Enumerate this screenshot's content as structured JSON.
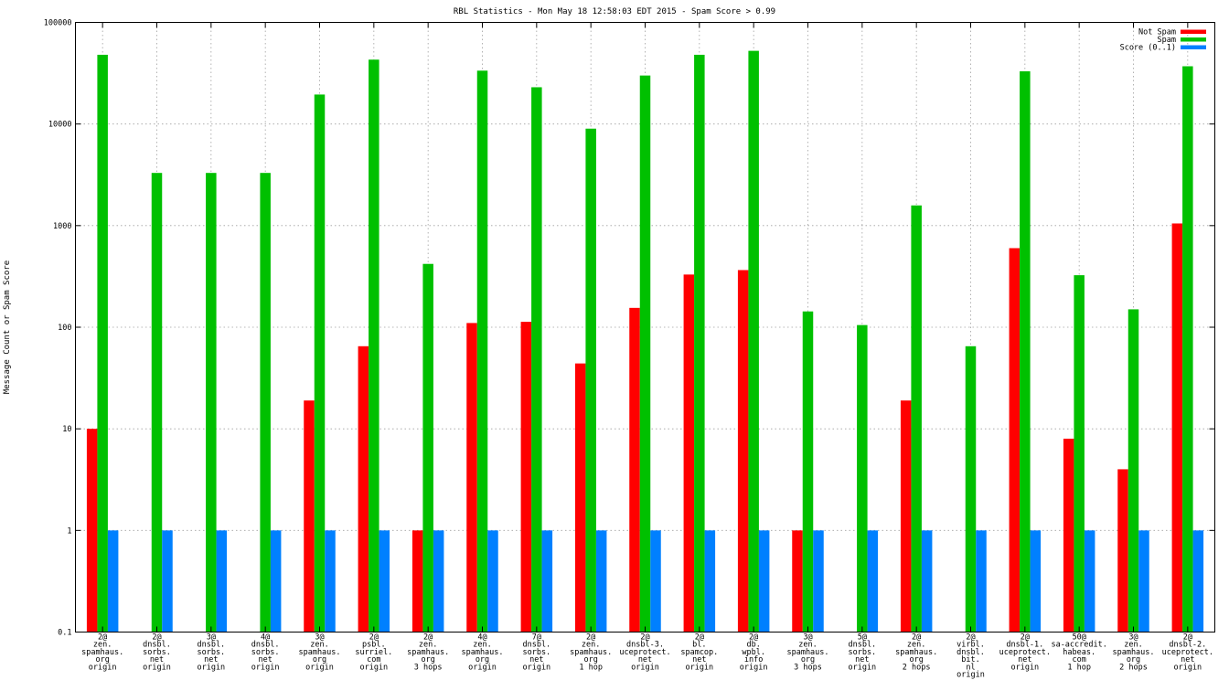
{
  "chart_data": {
    "type": "bar",
    "title": "RBL Statistics - Mon May 18 12:58:03 EDT 2015 - Spam Score > 0.99",
    "xlabel": "",
    "ylabel": "Message Count or Spam Score",
    "yscale": "log",
    "ylim": [
      0.1,
      100000
    ],
    "yticks": [
      "0.1",
      "1",
      "10",
      "100",
      "1000",
      "10000",
      "100000"
    ],
    "grid": true,
    "legend_position": "top-right",
    "categories": [
      [
        "2@",
        "zen.",
        "spamhaus.",
        "org",
        "origin"
      ],
      [
        "2@",
        "dnsbl.",
        "sorbs.",
        "net",
        "origin"
      ],
      [
        "3@",
        "dnsbl.",
        "sorbs.",
        "net",
        "origin"
      ],
      [
        "4@",
        "dnsbl.",
        "sorbs.",
        "net",
        "origin"
      ],
      [
        "3@",
        "zen.",
        "spamhaus.",
        "org",
        "origin"
      ],
      [
        "2@",
        "psbl.",
        "surriel.",
        "com",
        "origin"
      ],
      [
        "2@",
        "zen.",
        "spamhaus.",
        "org",
        "3 hops"
      ],
      [
        "4@",
        "zen.",
        "spamhaus.",
        "org",
        "origin"
      ],
      [
        "7@",
        "dnsbl.",
        "sorbs.",
        "net",
        "origin"
      ],
      [
        "2@",
        "zen.",
        "spamhaus.",
        "org",
        "1 hop"
      ],
      [
        "2@",
        "dnsbl-3.",
        "uceprotect.",
        "net",
        "origin"
      ],
      [
        "2@",
        "bl.",
        "spamcop.",
        "net",
        "origin"
      ],
      [
        "2@",
        "db.",
        "wpbl.",
        "info",
        "origin"
      ],
      [
        "3@",
        "zen.",
        "spamhaus.",
        "org",
        "3 hops"
      ],
      [
        "5@",
        "dnsbl.",
        "sorbs.",
        "net",
        "origin"
      ],
      [
        "2@",
        "zen.",
        "spamhaus.",
        "org",
        "2 hops"
      ],
      [
        "2@",
        "virbl.",
        "dnsbl.",
        "bit.",
        "nl",
        "origin"
      ],
      [
        "2@",
        "dnsbl-1.",
        "uceprotect.",
        "net",
        "origin"
      ],
      [
        "50@",
        "sa-accredit.",
        "habeas.",
        "com",
        "1 hop"
      ],
      [
        "3@",
        "zen.",
        "spamhaus.",
        "org",
        "2 hops"
      ],
      [
        "2@",
        "dnsbl-2.",
        "uceprotect.",
        "net",
        "origin"
      ]
    ],
    "series": [
      {
        "name": "Not Spam",
        "color": "#ff0000",
        "values": [
          10,
          null,
          null,
          null,
          19,
          65,
          1,
          110,
          113,
          44,
          155,
          330,
          365,
          1,
          null,
          19,
          null,
          600,
          8,
          4,
          1050
        ]
      },
      {
        "name": "Spam",
        "color": "#00c000",
        "values": [
          48000,
          3300,
          3300,
          3300,
          19500,
          43000,
          420,
          33500,
          23000,
          9000,
          30000,
          48000,
          52500,
          143,
          105,
          1580,
          65,
          33000,
          325,
          150,
          37000
        ]
      },
      {
        "name": "Score (0..1)",
        "color": "#0080ff",
        "values": [
          1,
          1,
          1,
          1,
          1,
          1,
          1,
          1,
          1,
          1,
          1,
          1,
          1,
          1,
          1,
          1,
          1,
          1,
          1,
          1,
          1
        ]
      }
    ]
  }
}
